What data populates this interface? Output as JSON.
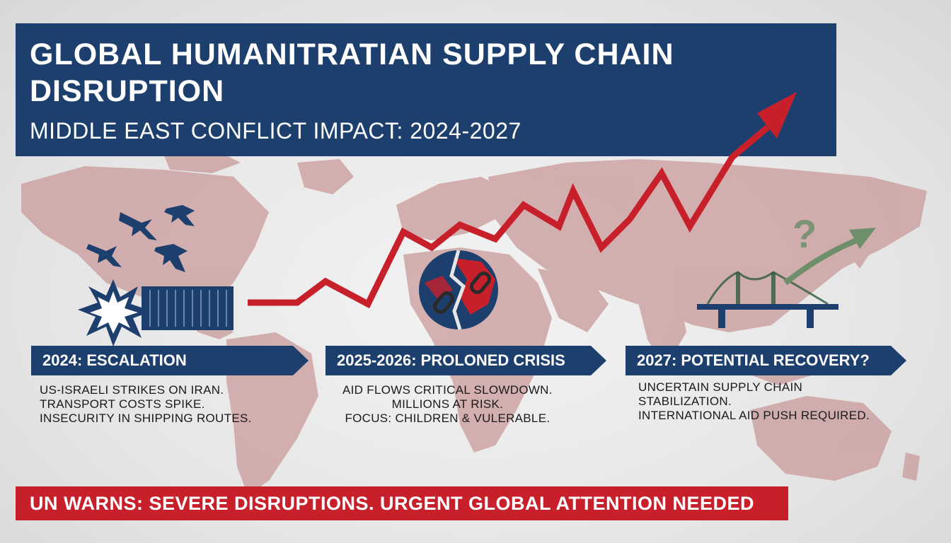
{
  "header": {
    "title": "GLOBAL HUMANITRATIAN SUPPLY CHAIN DISRUPTION",
    "subtitle": "MIDDLE EAST CONFLICT IMPACT: 2024-2027"
  },
  "phases": [
    {
      "label": "2024: ESCALATION",
      "lines": [
        "US-ISRAELI STRIKES ON IRAN.",
        "TRANSPORT COSTS SPIKE.",
        "INSECURITY IN SHIPPING ROUTES."
      ]
    },
    {
      "label": "2025-2026: PROLONED CRISIS",
      "lines": [
        "AID FLOWS CRITICAL SLOWDOWN.",
        "MILLIONS AT RISK.",
        "FOCUS: CHILDREN & VULERABLE."
      ]
    },
    {
      "label": "2027: POTENTIAL RECOVERY?",
      "lines": [
        "UNCERTAIN SUPPLY CHAIN",
        "STABILIZATION.",
        "INTERNATIONAL AID PUSH REQUIRED."
      ]
    }
  ],
  "footer": {
    "warning": "UN WARNS: SEVERE DISRUPTIONS. URGENT GLOBAL ATTENTION NEEDED"
  },
  "colors": {
    "navy": "#1d3f6e",
    "alert_red": "#c8202a",
    "map_pink": "#c99a9a",
    "recovery_green": "#6f8f6a"
  },
  "icons": [
    "fighter-jet-icon",
    "explosion-icon",
    "shipping-container-icon",
    "broken-globe-chain-icon",
    "bridge-icon",
    "question-mark-icon",
    "rising-arrow-icon"
  ]
}
